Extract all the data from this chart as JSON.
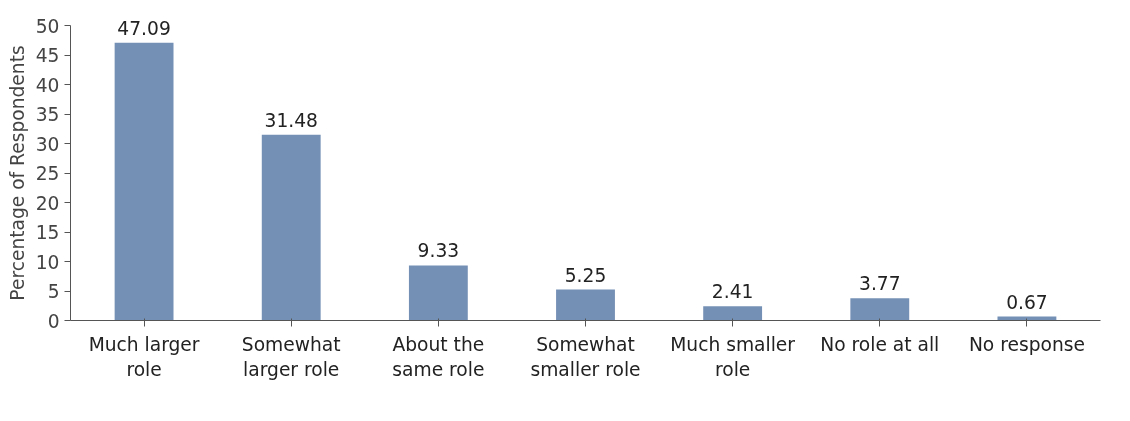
{
  "chart_data": {
    "type": "bar",
    "ylabel": "Percentage of Respondents",
    "categories": [
      "Much larger\nrole",
      "Somewhat\nlarger role",
      "About the\nsame role",
      "Somewhat\nsmaller role",
      "Much smaller\nrole",
      "No role at all",
      "No response"
    ],
    "values": [
      47.09,
      31.48,
      9.33,
      5.25,
      2.41,
      3.77,
      0.67
    ],
    "color": "#7590b5",
    "data_labels": true,
    "ylim": [
      0,
      50
    ],
    "yticks": [
      0,
      5,
      10,
      15,
      20,
      25,
      30,
      35,
      40,
      45,
      50
    ],
    "grid": false
  }
}
